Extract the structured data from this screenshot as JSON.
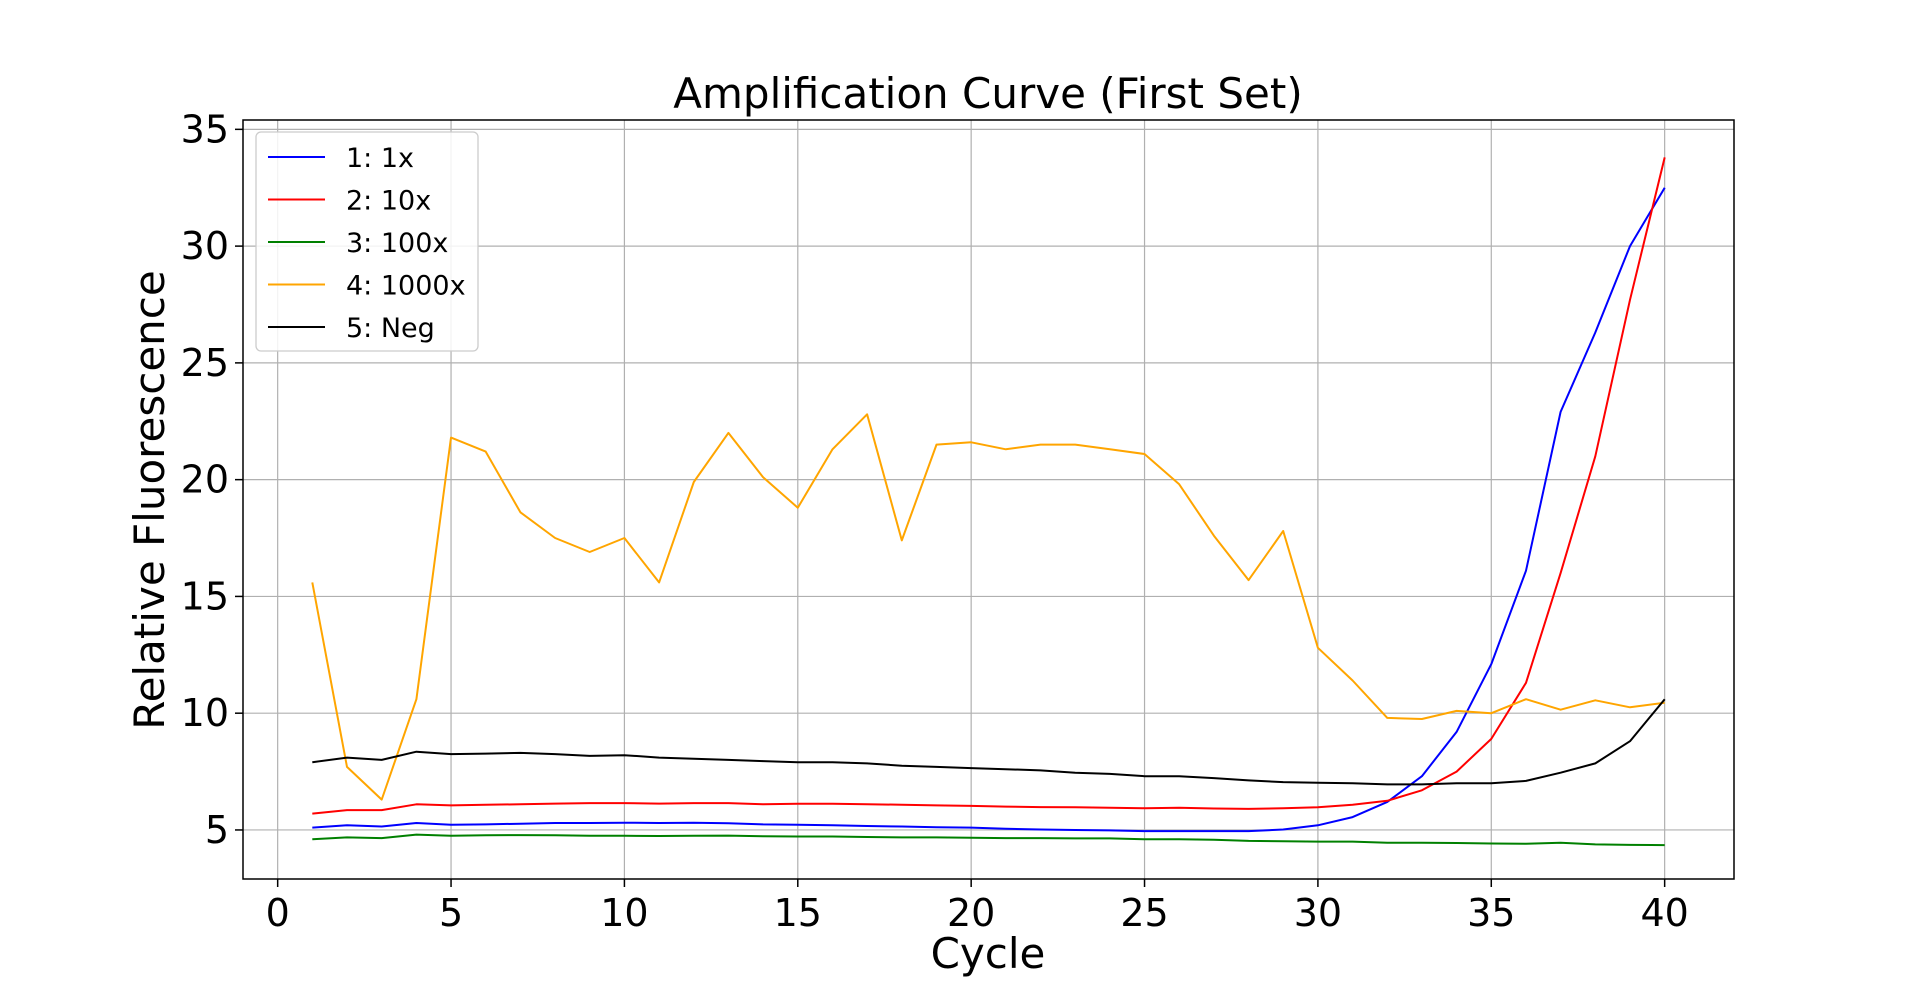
{
  "chart_data": {
    "type": "line",
    "title": "Amplification Curve (First Set)",
    "xlabel": "Cycle",
    "ylabel": "Relative Fluorescence",
    "xlim": [
      -1,
      42
    ],
    "ylim": [
      2.9,
      35.4
    ],
    "xticks": [
      0,
      5,
      10,
      15,
      20,
      25,
      30,
      35,
      40
    ],
    "yticks": [
      5,
      10,
      15,
      20,
      25,
      30,
      35
    ],
    "grid": true,
    "legend_position": "upper-left",
    "x": [
      1,
      2,
      3,
      4,
      5,
      6,
      7,
      8,
      9,
      10,
      11,
      12,
      13,
      14,
      15,
      16,
      17,
      18,
      19,
      20,
      21,
      22,
      23,
      24,
      25,
      26,
      27,
      28,
      29,
      30,
      31,
      32,
      33,
      34,
      35,
      36,
      37,
      38,
      39,
      40
    ],
    "series": [
      {
        "name": "1: 1x",
        "color": "#0000ff",
        "values": [
          5.1,
          5.2,
          5.15,
          5.3,
          5.22,
          5.24,
          5.27,
          5.3,
          5.3,
          5.31,
          5.3,
          5.31,
          5.29,
          5.24,
          5.22,
          5.2,
          5.17,
          5.15,
          5.12,
          5.1,
          5.05,
          5.02,
          5.0,
          4.98,
          4.95,
          4.95,
          4.95,
          4.95,
          5.02,
          5.2,
          5.55,
          6.2,
          7.3,
          9.2,
          12.1,
          16.1,
          22.9,
          26.3,
          30.0,
          32.5
        ]
      },
      {
        "name": "2: 10x",
        "color": "#ff0000",
        "values": [
          5.7,
          5.85,
          5.85,
          6.1,
          6.05,
          6.08,
          6.1,
          6.13,
          6.15,
          6.15,
          6.13,
          6.15,
          6.15,
          6.1,
          6.12,
          6.12,
          6.1,
          6.08,
          6.05,
          6.03,
          6.0,
          5.98,
          5.97,
          5.95,
          5.93,
          5.95,
          5.92,
          5.9,
          5.93,
          5.97,
          6.08,
          6.25,
          6.7,
          7.5,
          8.9,
          11.3,
          16.0,
          21.0,
          27.7,
          33.8
        ]
      },
      {
        "name": "3: 100x",
        "color": "#008000",
        "values": [
          4.6,
          4.68,
          4.65,
          4.8,
          4.75,
          4.77,
          4.78,
          4.77,
          4.75,
          4.75,
          4.74,
          4.75,
          4.76,
          4.73,
          4.72,
          4.72,
          4.7,
          4.68,
          4.68,
          4.67,
          4.65,
          4.65,
          4.64,
          4.64,
          4.6,
          4.6,
          4.58,
          4.53,
          4.52,
          4.5,
          4.5,
          4.45,
          4.45,
          4.44,
          4.42,
          4.41,
          4.45,
          4.38,
          4.36,
          4.35
        ]
      },
      {
        "name": "4: 1000x",
        "color": "#ffa500",
        "values": [
          15.6,
          7.7,
          6.3,
          10.6,
          21.8,
          21.2,
          18.6,
          17.5,
          16.9,
          17.5,
          15.6,
          19.9,
          22.0,
          20.1,
          18.8,
          21.3,
          22.8,
          17.4,
          21.5,
          21.6,
          21.3,
          21.5,
          21.5,
          21.3,
          21.1,
          19.8,
          17.6,
          15.7,
          17.8,
          12.8,
          11.4,
          9.8,
          9.75,
          10.1,
          10.0,
          10.6,
          10.15,
          10.55,
          10.25,
          10.45
        ]
      },
      {
        "name": "5: Neg",
        "color": "#000000",
        "values": [
          7.9,
          8.1,
          8.0,
          8.35,
          8.25,
          8.27,
          8.3,
          8.25,
          8.17,
          8.2,
          8.1,
          8.05,
          8.0,
          7.95,
          7.9,
          7.9,
          7.85,
          7.75,
          7.7,
          7.65,
          7.6,
          7.55,
          7.45,
          7.4,
          7.3,
          7.3,
          7.22,
          7.12,
          7.05,
          7.02,
          7.0,
          6.95,
          6.95,
          7.0,
          7.0,
          7.1,
          7.45,
          7.85,
          8.8,
          10.6
        ]
      }
    ]
  }
}
